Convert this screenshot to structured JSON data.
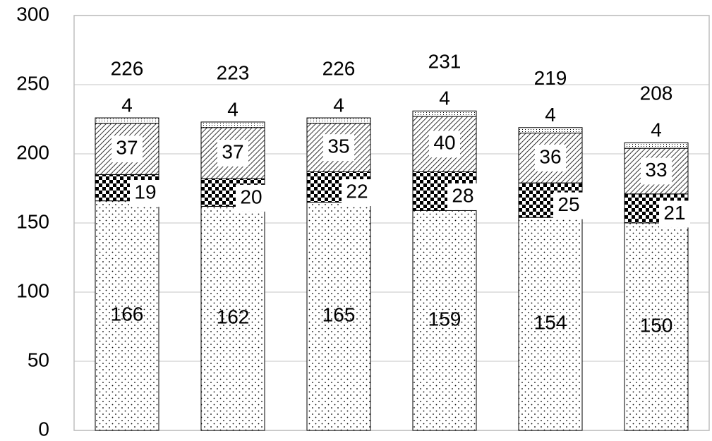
{
  "chart_data": {
    "type": "stacked_bar",
    "categories": [
      null,
      null,
      null,
      null,
      null,
      null
    ],
    "series": [
      {
        "color": "#000000",
        "pattern": "dots",
        "values": [
          166,
          162,
          165,
          159,
          154,
          150
        ]
      },
      {
        "color": "#000000",
        "pattern": "checker",
        "values": [
          19,
          20,
          22,
          28,
          25,
          21
        ]
      },
      {
        "color": "#000000",
        "pattern": "hatch",
        "values": [
          37,
          37,
          35,
          40,
          36,
          33
        ]
      },
      {
        "color": "#000000",
        "pattern": "fine",
        "values": [
          4,
          4,
          4,
          4,
          4,
          4
        ]
      }
    ],
    "totals": [
      226,
      223,
      226,
      231,
      219,
      208
    ],
    "ylim": [
      0,
      300
    ],
    "yticks": [
      0,
      50,
      100,
      150,
      200,
      250,
      300
    ],
    "grid": true
  }
}
